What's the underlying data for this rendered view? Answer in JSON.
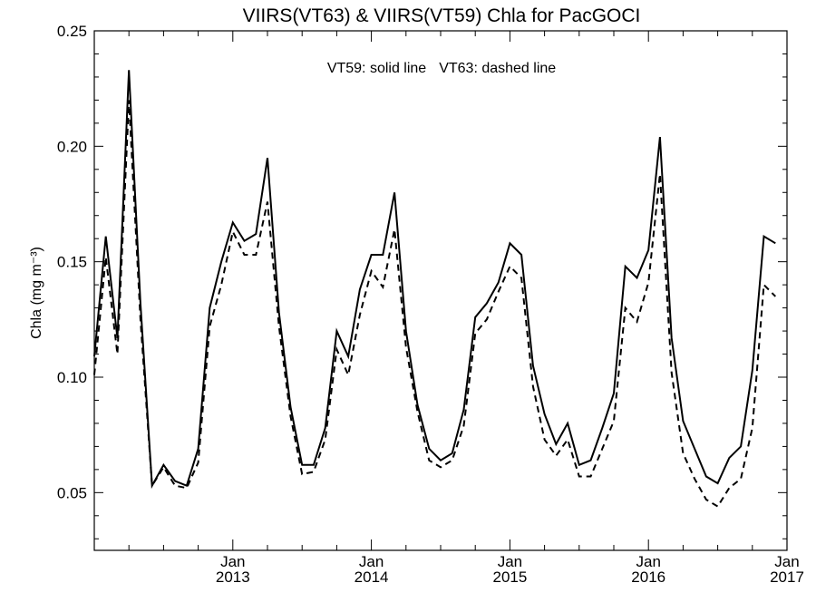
{
  "chart_data": {
    "type": "line",
    "title": "VIIRS(VT63) & VIIRS(VT59)  Chla for PacGOCI",
    "ylabel": "Chla (mg m⁻³)",
    "annotations": [
      "VT59: solid line",
      "VT63: dashed line"
    ],
    "xlim": [
      "2012-01",
      "2017-01"
    ],
    "ylim": [
      0.025,
      0.25
    ],
    "y_ticks": [
      0.05,
      0.1,
      0.15,
      0.2,
      0.25
    ],
    "y_tick_labels": [
      "0.05",
      "0.10",
      "0.15",
      "0.20",
      "0.25"
    ],
    "x_ticks": [
      {
        "date": "2013-01",
        "label": [
          "Jan",
          "2013"
        ]
      },
      {
        "date": "2014-01",
        "label": [
          "Jan",
          "2014"
        ]
      },
      {
        "date": "2015-01",
        "label": [
          "Jan",
          "2015"
        ]
      },
      {
        "date": "2016-01",
        "label": [
          "Jan",
          "2016"
        ]
      },
      {
        "date": "2017-01",
        "label": [
          "Jan",
          "2017"
        ]
      }
    ],
    "x": [
      "2012-01",
      "2012-02",
      "2012-03",
      "2012-04",
      "2012-05",
      "2012-06",
      "2012-07",
      "2012-08",
      "2012-09",
      "2012-10",
      "2012-11",
      "2012-12",
      "2013-01",
      "2013-02",
      "2013-03",
      "2013-04",
      "2013-05",
      "2013-06",
      "2013-07",
      "2013-08",
      "2013-09",
      "2013-10",
      "2013-11",
      "2013-12",
      "2014-01",
      "2014-02",
      "2014-03",
      "2014-04",
      "2014-05",
      "2014-06",
      "2014-07",
      "2014-08",
      "2014-09",
      "2014-10",
      "2014-11",
      "2014-12",
      "2015-01",
      "2015-02",
      "2015-03",
      "2015-04",
      "2015-05",
      "2015-06",
      "2015-07",
      "2015-08",
      "2015-09",
      "2015-10",
      "2015-11",
      "2015-12",
      "2016-01",
      "2016-02",
      "2016-03",
      "2016-04",
      "2016-05",
      "2016-06",
      "2016-07",
      "2016-08",
      "2016-09",
      "2016-10",
      "2016-11",
      "2016-12",
      "2017-01"
    ],
    "series": [
      {
        "name": "VT59",
        "style": "solid",
        "values": [
          0.109,
          0.161,
          0.117,
          0.233,
          0.132,
          0.053,
          0.062,
          0.055,
          0.053,
          0.069,
          0.13,
          0.15,
          0.167,
          0.159,
          0.162,
          0.195,
          0.128,
          0.087,
          0.062,
          0.062,
          0.078,
          0.12,
          0.109,
          0.138,
          0.153,
          0.153,
          0.18,
          0.12,
          0.088,
          0.069,
          0.064,
          0.067,
          0.086,
          0.126,
          0.132,
          0.141,
          0.158,
          0.153,
          0.105,
          0.084,
          0.071,
          0.08,
          0.062,
          0.064,
          0.078,
          0.093,
          0.148,
          0.143,
          0.155,
          0.204,
          0.117,
          0.081,
          0.069,
          0.057,
          0.054,
          0.065,
          0.07,
          0.103,
          0.161,
          0.158,
          null
        ]
      },
      {
        "name": "VT63",
        "style": "dashed",
        "values": [
          0.101,
          0.152,
          0.11,
          0.22,
          0.125,
          0.053,
          0.061,
          0.053,
          0.052,
          0.063,
          0.122,
          0.14,
          0.163,
          0.153,
          0.153,
          0.176,
          0.122,
          0.083,
          0.058,
          0.059,
          0.073,
          0.112,
          0.101,
          0.127,
          0.146,
          0.139,
          0.164,
          0.113,
          0.085,
          0.064,
          0.061,
          0.064,
          0.079,
          0.119,
          0.125,
          0.137,
          0.148,
          0.143,
          0.096,
          0.073,
          0.066,
          0.073,
          0.057,
          0.057,
          0.069,
          0.081,
          0.13,
          0.124,
          0.141,
          0.188,
          0.102,
          0.067,
          0.056,
          0.047,
          0.044,
          0.052,
          0.056,
          0.078,
          0.14,
          0.135,
          null
        ]
      }
    ]
  }
}
